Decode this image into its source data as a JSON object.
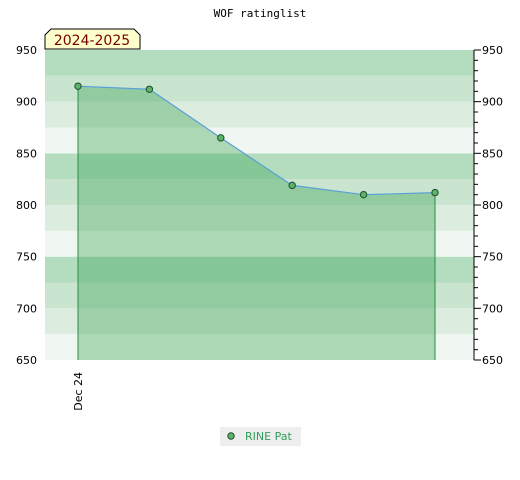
{
  "chart_data": {
    "type": "area",
    "title": "WOF ratinglist",
    "season": "2024-2025",
    "ylim": [
      650,
      950
    ],
    "yticks": [
      650,
      700,
      750,
      800,
      850,
      900,
      950
    ],
    "xticks": [
      {
        "label": "Dec 24",
        "index": 0
      }
    ],
    "grid": "horizontal bands",
    "legend": "bottom-center",
    "series": [
      {
        "name": "RINE Pat",
        "values": [
          915,
          912,
          865,
          819,
          810,
          812
        ]
      }
    ],
    "colors": {
      "line": "#5aa0d8",
      "fill": "#2e9e47",
      "marker": "#5cb36a",
      "badge_bg": "#ffffcc",
      "badge_text": "#7a0000",
      "legend_text": "#2f9e5b"
    }
  }
}
